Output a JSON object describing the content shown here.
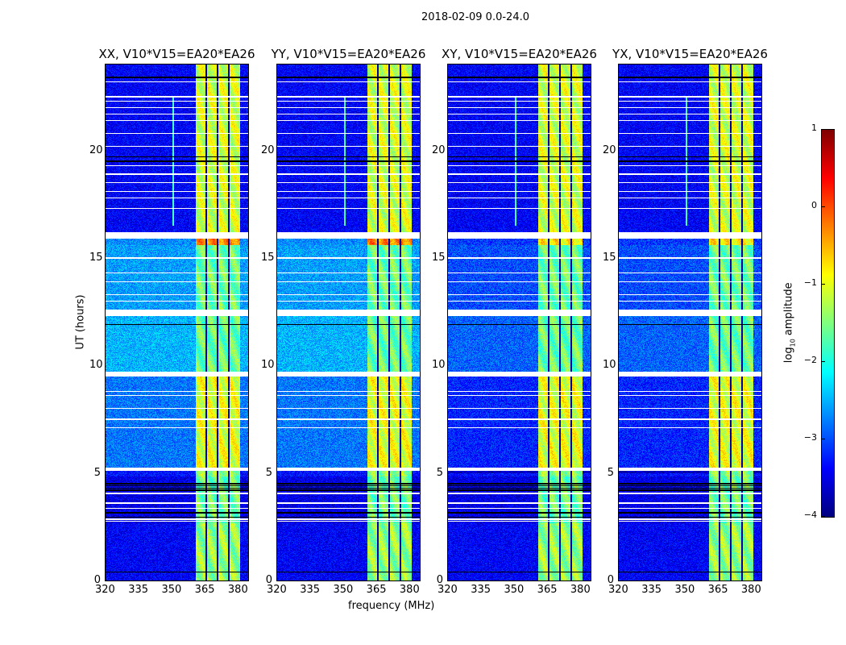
{
  "chart_data": {
    "type": "heatmap",
    "title": "2018-02-09 0.0-24.0",
    "xlabel": "frequency (MHz)",
    "ylabel": "UT (hours)",
    "xlim": [
      320,
      384.4
    ],
    "ylim": [
      0,
      24
    ],
    "xticks": [
      320,
      335,
      350,
      365,
      380
    ],
    "yticks": [
      0,
      5,
      10,
      15,
      20
    ],
    "colorbar": {
      "label_prefix": "log",
      "label_sub": "10",
      "label_suffix": " amplitude",
      "range": [
        -4,
        1
      ],
      "ticks": [
        "−4",
        "−3",
        "−2",
        "−1",
        "0",
        "1"
      ],
      "tick_values": [
        -4,
        -3,
        -2,
        -1,
        0,
        1
      ],
      "colormap": "jet"
    },
    "panels": [
      {
        "title": "XX, V10*V15=EA20*EA26",
        "cross_pol": false
      },
      {
        "title": "YY, V10*V15=EA20*EA26",
        "cross_pol": false
      },
      {
        "title": "XY, V10*V15=EA20*EA26",
        "cross_pol": true
      },
      {
        "title": "YX, V10*V15=EA20*EA26",
        "cross_pol": true
      }
    ],
    "band_mhz": [
      360.8,
      380.6
    ],
    "band_dividers_mhz": [
      365.5,
      370.5,
      375.6
    ],
    "time_segments": [
      {
        "ut": [
          0,
          2.65
        ],
        "background": -3.4,
        "band": -1.4
      },
      {
        "ut": [
          2.65,
          4.85
        ],
        "background": -3.5,
        "band": -1.6
      },
      {
        "ut": [
          4.85,
          5.1
        ],
        "background": -3.3,
        "band": -1.4
      },
      {
        "ut": [
          5.25,
          9.5
        ],
        "background": -2.8,
        "band": -1.0
      },
      {
        "ut": [
          9.7,
          12.3
        ],
        "background": -2.5,
        "band": -1.6
      },
      {
        "ut": [
          12.6,
          15.6
        ],
        "background": -2.6,
        "band": -1.6
      },
      {
        "ut": [
          15.6,
          15.9
        ],
        "background": -2.7,
        "band": -0.3
      },
      {
        "ut": [
          16.2,
          24
        ],
        "background": -3.4,
        "band": -1.1
      }
    ],
    "flagged_ut": [
      2.75,
      2.85,
      3.35,
      3.6,
      4.05,
      5.15,
      5.2,
      7.1,
      7.5,
      8.0,
      8.6,
      8.8,
      13.0,
      13.3,
      13.9,
      14.3,
      15.0,
      15.95,
      16.05,
      16.15,
      17.3,
      17.8,
      18.1,
      18.5,
      18.9,
      19.3,
      20.2,
      20.8,
      21.4,
      21.7,
      22.0,
      22.3,
      22.5,
      23.2
    ],
    "dropout_ut": [
      0.4,
      2.95,
      3.15,
      4.2,
      4.3,
      4.4,
      4.5,
      9.55,
      9.65,
      11.9,
      12.35,
      12.5,
      19.5,
      19.7,
      23.4
    ]
  }
}
